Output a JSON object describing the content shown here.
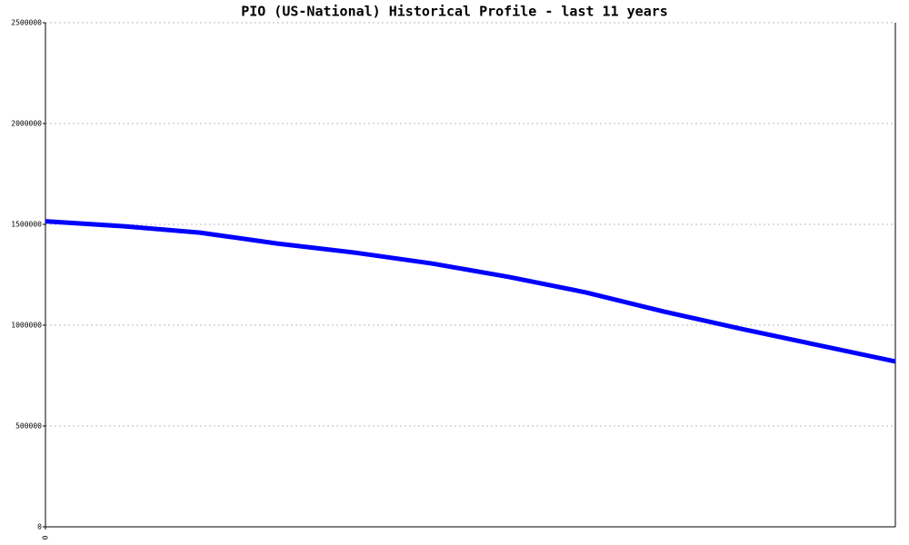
{
  "chart_data": {
    "type": "line",
    "title": "PIO (US-National) Historical Profile - last 11 years",
    "x": [
      0,
      1,
      2,
      3,
      4,
      5,
      6,
      7,
      8,
      9,
      10,
      11
    ],
    "series": [
      {
        "name": "PIO",
        "color": "#0000ff",
        "values": [
          1515000,
          1491000,
          1459000,
          1405000,
          1360000,
          1306000,
          1239000,
          1162000,
          1068000,
          982000,
          901000,
          820000
        ]
      }
    ],
    "xlim": [
      0,
      11
    ],
    "xticks": [
      0
    ],
    "ylim": [
      0,
      2500000
    ],
    "yticks": [
      0,
      500000,
      1000000,
      1500000,
      2000000,
      2500000
    ],
    "grid": true
  }
}
